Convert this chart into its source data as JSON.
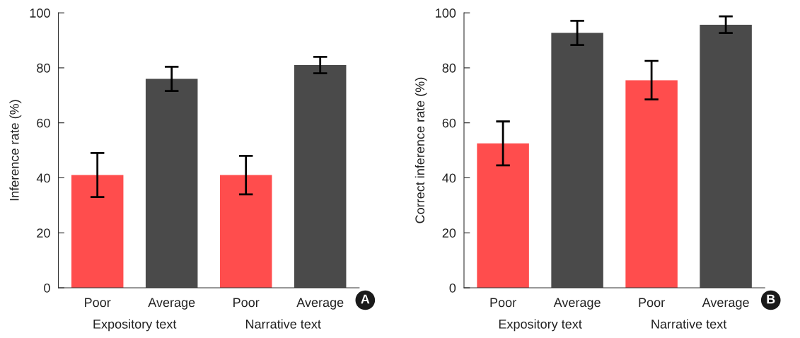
{
  "chart_data": [
    {
      "type": "bar",
      "title": "A",
      "ylabel": "Inference rate (%)",
      "categories": [
        "Poor",
        "Average",
        "Poor",
        "Average"
      ],
      "values": [
        41,
        76,
        41,
        81
      ],
      "errors": [
        8,
        4.4,
        7,
        3
      ],
      "colors": [
        "#ff4d4d",
        "#4a4a4a",
        "#ff4d4d",
        "#4a4a4a"
      ],
      "ylim": [
        0,
        100
      ],
      "yticks": [
        0,
        20,
        40,
        60,
        80,
        100
      ],
      "grid": false,
      "legend": false,
      "annotations": [
        "Expository text",
        "Narrative text"
      ]
    },
    {
      "type": "bar",
      "title": "B",
      "ylabel": "Correct inference rate (%)",
      "categories": [
        "Poor",
        "Average",
        "Poor",
        "Average"
      ],
      "values": [
        52.5,
        92.7,
        75.5,
        95.7
      ],
      "errors": [
        8,
        4.4,
        7,
        3
      ],
      "colors": [
        "#ff4d4d",
        "#4a4a4a",
        "#ff4d4d",
        "#4a4a4a"
      ],
      "ylim": [
        0,
        100
      ],
      "yticks": [
        0,
        20,
        40,
        60,
        80,
        100
      ],
      "grid": false,
      "legend": false,
      "annotations": [
        "Expository text",
        "Narrative text"
      ]
    }
  ]
}
